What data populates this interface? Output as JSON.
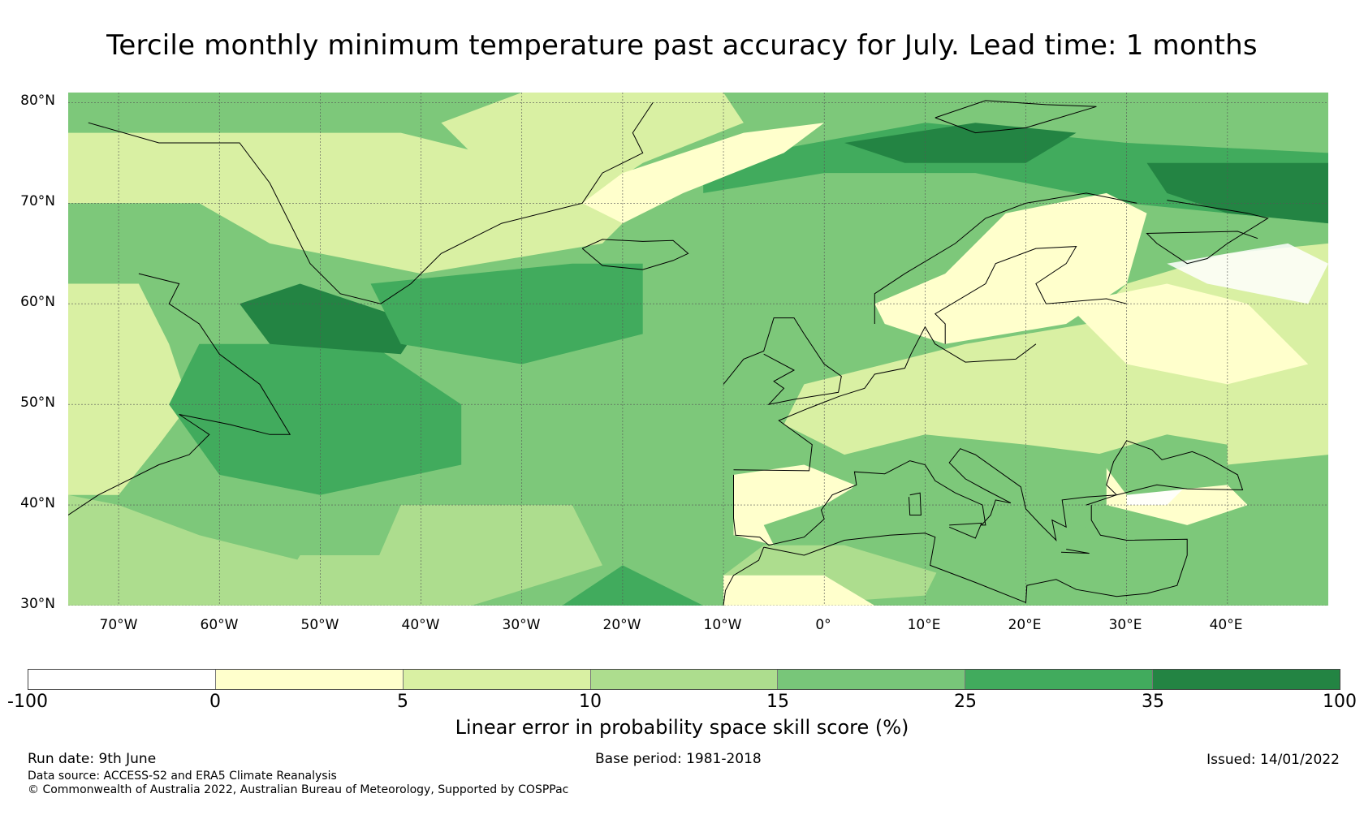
{
  "title": "Tercile monthly minimum temperature past accuracy for July. Lead time: 1 months",
  "lat_labels": [
    "80°N",
    "70°N",
    "60°N",
    "50°N",
    "40°N",
    "30°N"
  ],
  "lon_labels": [
    "70°W",
    "60°W",
    "50°W",
    "40°W",
    "30°W",
    "20°W",
    "10°W",
    "0°",
    "10°E",
    "20°E",
    "30°E",
    "40°E"
  ],
  "map": {
    "lat_range": [
      30,
      81
    ],
    "lon_range": [
      -75,
      50
    ],
    "colors": {
      "ocean_base": "#7dc87a",
      "strong": "#41ab5d",
      "very_strong": "#238443",
      "moderate": "#addd8e",
      "weak": "#d9f0a3",
      "very_weak": "#ffffcc",
      "negative": "#ffffff",
      "coast": "#000000"
    }
  },
  "colorbar": {
    "ticks": [
      "-100",
      "0",
      "5",
      "10",
      "15",
      "25",
      "35",
      "100"
    ],
    "colors": [
      "#ffffff",
      "#ffffcc",
      "#d9f0a3",
      "#addd8e",
      "#78c679",
      "#41ab5d",
      "#238443"
    ],
    "label": "Linear error in probability space skill score (%)"
  },
  "footer": {
    "run_date": "Run date: 9th June",
    "base_period": "Base period: 1981-2018",
    "issued": "Issued: 14/01/2022",
    "data_source": "Data source: ACCESS-S2 and ERA5 Climate Reanalysis",
    "copyright": "© Commonwealth of Australia 2022, Australian Bureau of Meteorology, Supported by COSPPac"
  }
}
